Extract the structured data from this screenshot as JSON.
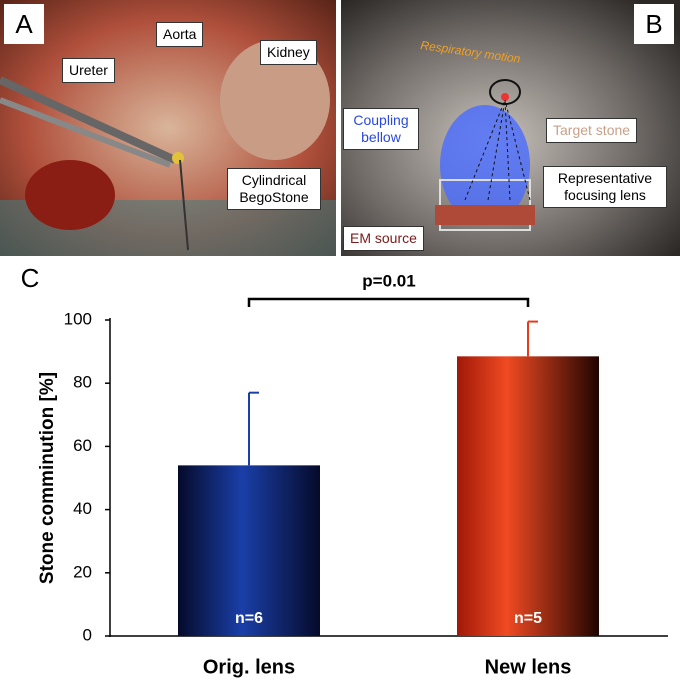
{
  "panels": [
    {
      "label": "A",
      "annotations": [
        "Aorta",
        "Kidney",
        "Ureter",
        "Cylindrical BegoStone"
      ]
    },
    {
      "label": "B",
      "annotations": [
        "Respiratory motion",
        "Coupling bellow",
        "Target stone",
        "Representative focusing lens",
        "EM source"
      ]
    }
  ],
  "chart_data": {
    "type": "bar",
    "panel_label": "C",
    "ylabel": "Stone comminution [%]",
    "categories": [
      "Orig. lens",
      "New lens"
    ],
    "values": [
      54,
      88.5
    ],
    "errors": [
      23,
      11
    ],
    "bar_labels": [
      "n=6",
      "n=5"
    ],
    "series_colors": [
      "#1a3fa8",
      "#e83a1c"
    ],
    "ylim": [
      0,
      100
    ],
    "yticks": [
      0,
      20,
      40,
      60,
      80,
      100
    ],
    "annotation": "p=0.01"
  }
}
